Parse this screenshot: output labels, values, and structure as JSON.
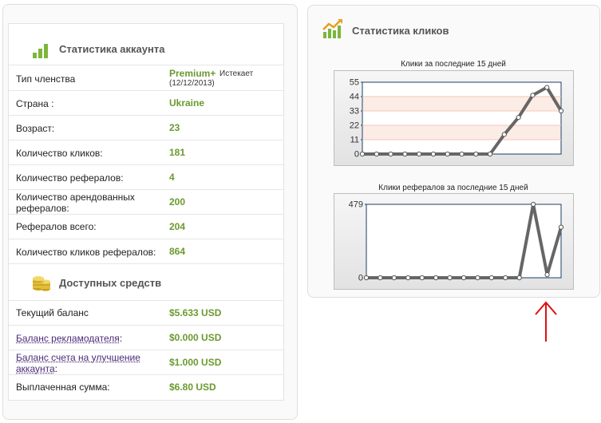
{
  "account": {
    "title": "Статистика аккаунта",
    "rows": [
      {
        "label": "Тип членства",
        "value": "Premium+",
        "note_label": "Истекает",
        "note_date": "(12/12/2013)"
      },
      {
        "label": "Страна :",
        "value": "Ukraine"
      },
      {
        "label": "Возраст:",
        "value": "23"
      },
      {
        "label": "Количество кликов:",
        "value": "181"
      },
      {
        "label": "Количество рефералов:",
        "value": "4"
      },
      {
        "label_line1": "Количество арендованных",
        "label_line2": "рефералов:",
        "value": "200"
      },
      {
        "label": "Рефералов всего:",
        "value": "204"
      },
      {
        "label": "Количество кликов рефералов:",
        "value": "864"
      }
    ]
  },
  "funds": {
    "title": "Доступных средств",
    "rows": [
      {
        "label": "Текущий баланс",
        "value": "$5.633 USD"
      },
      {
        "label": "Баланс рекламодателя",
        "label_tail": ":",
        "value": "$0.000 USD"
      },
      {
        "label_line1": "Баланс счета на улучшение",
        "label_line2": "аккаунта",
        "label_tail": ":",
        "value": "$1.000 USD"
      },
      {
        "label": "Выплаченная сумма:",
        "value": "$6.80 USD"
      }
    ]
  },
  "clicks_panel": {
    "title": "Статистика кликов"
  },
  "chart_data": [
    {
      "type": "line",
      "title": "Клики за последние 15 дней",
      "yticks": [
        0,
        11,
        22,
        33,
        44,
        55
      ],
      "ylim": [
        0,
        55
      ],
      "x": [
        1,
        2,
        3,
        4,
        5,
        6,
        7,
        8,
        9,
        10,
        11,
        12,
        13,
        14,
        15
      ],
      "values": [
        0,
        0,
        0,
        0,
        0,
        0,
        0,
        0,
        0,
        0,
        15,
        28,
        45,
        51,
        33
      ],
      "grid": true,
      "line_color": "#666666"
    },
    {
      "type": "line",
      "title": "Клики рефералов за последние 15 дней",
      "yticks": [
        0,
        479
      ],
      "ylim": [
        0,
        479
      ],
      "x": [
        1,
        2,
        3,
        4,
        5,
        6,
        7,
        8,
        9,
        10,
        11,
        12,
        13,
        14,
        15
      ],
      "values": [
        0,
        0,
        0,
        0,
        0,
        0,
        0,
        0,
        0,
        0,
        0,
        0,
        479,
        20,
        330
      ],
      "grid": false,
      "line_color": "#666666"
    }
  ],
  "colors": {
    "value_green": "#6a9a2e",
    "link_purple": "#4b2c78",
    "arrow_red": "#e01010"
  }
}
